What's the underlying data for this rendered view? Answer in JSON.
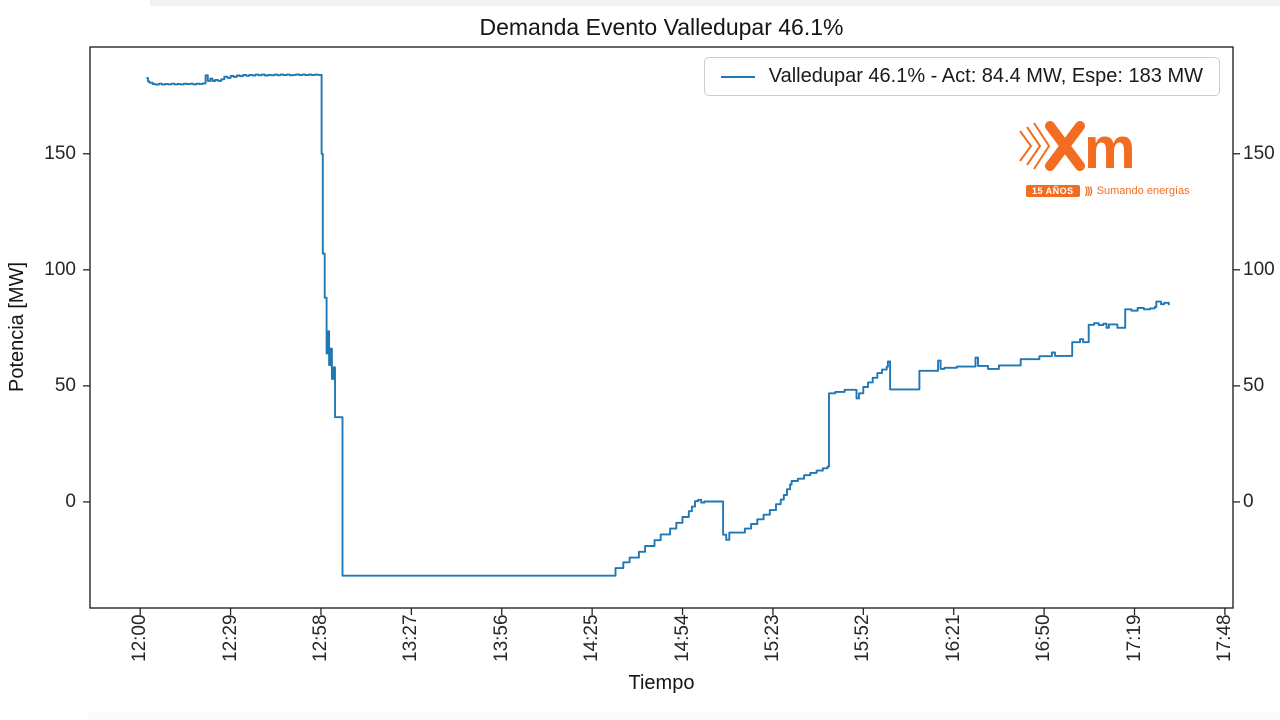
{
  "page": {
    "background": "#ffffff"
  },
  "chart_data": {
    "type": "line",
    "render": "step-after",
    "title": "Demanda Evento Valledupar 46.1%",
    "xlabel": "Tiempo",
    "ylabel": "Potencia [MW]",
    "line_color": "#1f77b4",
    "frame_color": "#262626",
    "legend": {
      "label": "Valledupar 46.1% - Act: 84.4 MW, Espe: 183 MW",
      "position": "upper right",
      "line_color": "#1f77b4"
    },
    "x_tick_labels": [
      "12:00",
      "12:29",
      "12:58",
      "13:27",
      "13:56",
      "14:25",
      "14:54",
      "15:23",
      "15:52",
      "16:21",
      "16:50",
      "17:19",
      "17:48"
    ],
    "x_tick_minutes": [
      720,
      749,
      778,
      807,
      836,
      865,
      894,
      923,
      952,
      981,
      1010,
      1039,
      1068
    ],
    "y_ticks": [
      0,
      50,
      100,
      150
    ],
    "xlim_minutes": [
      703.9,
      1070.6
    ],
    "ylim": [
      -45.7,
      196.0
    ],
    "grid": false,
    "points": [
      [
        722,
        182.6
      ],
      [
        722.5,
        181.2
      ],
      [
        723,
        180.6
      ],
      [
        724,
        180.0
      ],
      [
        725,
        179.8
      ],
      [
        726,
        180.2
      ],
      [
        727,
        179.8
      ],
      [
        728,
        180.1
      ],
      [
        729,
        179.9
      ],
      [
        730,
        180.2
      ],
      [
        731,
        179.9
      ],
      [
        732,
        180.1
      ],
      [
        733,
        179.9
      ],
      [
        734,
        180.2
      ],
      [
        735,
        180.0
      ],
      [
        736,
        180.2
      ],
      [
        737,
        179.9
      ],
      [
        738,
        180.2
      ],
      [
        739,
        180.0
      ],
      [
        740,
        180.3
      ],
      [
        741,
        183.8
      ],
      [
        741.7,
        181.4
      ],
      [
        742.5,
        182.4
      ],
      [
        743.2,
        181.3
      ],
      [
        744,
        181.8
      ],
      [
        745,
        181.4
      ],
      [
        746,
        182.1
      ],
      [
        747,
        183.2
      ],
      [
        748,
        182.7
      ],
      [
        749,
        183.5
      ],
      [
        750,
        183.1
      ],
      [
        751,
        183.7
      ],
      [
        752,
        183.4
      ],
      [
        753,
        184.0
      ],
      [
        754,
        183.6
      ],
      [
        755,
        184.0
      ],
      [
        756,
        183.7
      ],
      [
        757,
        184.1
      ],
      [
        758,
        183.8
      ],
      [
        759,
        184.1
      ],
      [
        760,
        183.7
      ],
      [
        761,
        184.0
      ],
      [
        762,
        183.8
      ],
      [
        763,
        184.1
      ],
      [
        764,
        183.8
      ],
      [
        765,
        184.1
      ],
      [
        766,
        183.9
      ],
      [
        767,
        184.1
      ],
      [
        768,
        183.8
      ],
      [
        769,
        184.0
      ],
      [
        770,
        184.2
      ],
      [
        771,
        183.9
      ],
      [
        772,
        184.1
      ],
      [
        773,
        183.9
      ],
      [
        774,
        184.1
      ],
      [
        775,
        183.9
      ],
      [
        776,
        184.1
      ],
      [
        777,
        184.0
      ],
      [
        778,
        184.0
      ],
      [
        778.2,
        150
      ],
      [
        778.6,
        107
      ],
      [
        779.2,
        88
      ],
      [
        779.8,
        64
      ],
      [
        780.2,
        73.5
      ],
      [
        780.6,
        59
      ],
      [
        781,
        66
      ],
      [
        781.5,
        53
      ],
      [
        782,
        58
      ],
      [
        782.5,
        36.5
      ],
      [
        784.6,
        36.5
      ],
      [
        784.9,
        -31.8
      ],
      [
        872,
        -31.8
      ],
      [
        872.5,
        -28.5
      ],
      [
        875,
        -26
      ],
      [
        877,
        -24
      ],
      [
        880,
        -21.5
      ],
      [
        882,
        -19
      ],
      [
        885,
        -16.5
      ],
      [
        887,
        -14
      ],
      [
        890,
        -11.5
      ],
      [
        892,
        -9
      ],
      [
        894,
        -6.5
      ],
      [
        896,
        -4
      ],
      [
        897,
        -2
      ],
      [
        898,
        0.3
      ],
      [
        899,
        0.9
      ],
      [
        900,
        -0.3
      ],
      [
        901,
        0.2
      ],
      [
        906,
        0.2
      ],
      [
        907,
        -14.1
      ],
      [
        908,
        -16.3
      ],
      [
        909,
        -13.2
      ],
      [
        913,
        -13.2
      ],
      [
        914,
        -11.5
      ],
      [
        916,
        -9.5
      ],
      [
        918,
        -7.5
      ],
      [
        920,
        -5.5
      ],
      [
        922,
        -3.5
      ],
      [
        924,
        -1
      ],
      [
        925.5,
        1
      ],
      [
        926.5,
        3
      ],
      [
        927.5,
        5.5
      ],
      [
        928.5,
        7.5
      ],
      [
        929,
        9
      ],
      [
        931,
        10
      ],
      [
        933,
        11.5
      ],
      [
        935,
        12.5
      ],
      [
        937,
        13.5
      ],
      [
        939,
        14.5
      ],
      [
        940.5,
        15.2
      ],
      [
        941,
        46.8
      ],
      [
        943,
        47.4
      ],
      [
        946,
        48.3
      ],
      [
        949,
        48.3
      ],
      [
        949.8,
        44.6
      ],
      [
        950.6,
        46.8
      ],
      [
        952,
        49.5
      ],
      [
        953.5,
        51.5
      ],
      [
        955,
        53.5
      ],
      [
        956.5,
        55.5
      ],
      [
        958,
        57
      ],
      [
        959.5,
        58.2
      ],
      [
        959.9,
        60.5
      ],
      [
        960.6,
        48.5
      ],
      [
        969.5,
        48.5
      ],
      [
        970,
        56.5
      ],
      [
        975.5,
        56.5
      ],
      [
        976,
        60.9
      ],
      [
        976.8,
        57.3
      ],
      [
        978,
        57.8
      ],
      [
        982,
        58.3
      ],
      [
        987.5,
        58.3
      ],
      [
        988,
        62.2
      ],
      [
        988.8,
        58.6
      ],
      [
        991.5,
        58.6
      ],
      [
        992,
        57.3
      ],
      [
        995,
        57.3
      ],
      [
        995.5,
        58.8
      ],
      [
        1002,
        58.8
      ],
      [
        1002.5,
        61.5
      ],
      [
        1008,
        61.5
      ],
      [
        1008.5,
        62.8
      ],
      [
        1012,
        62.8
      ],
      [
        1012.5,
        64.4
      ],
      [
        1013.5,
        62.9
      ],
      [
        1018.5,
        62.9
      ],
      [
        1019,
        68.8
      ],
      [
        1021,
        68.8
      ],
      [
        1021.5,
        70.1
      ],
      [
        1022.5,
        68.8
      ],
      [
        1023.8,
        68.8
      ],
      [
        1024.3,
        76.3
      ],
      [
        1026,
        77
      ],
      [
        1027.5,
        76.2
      ],
      [
        1029,
        76.8
      ],
      [
        1030,
        75
      ],
      [
        1030.8,
        76.5
      ],
      [
        1033,
        76.5
      ],
      [
        1033.5,
        75
      ],
      [
        1035.5,
        75
      ],
      [
        1036,
        83
      ],
      [
        1038,
        82.4
      ],
      [
        1040,
        83.6
      ],
      [
        1042,
        83
      ],
      [
        1044,
        83.4
      ],
      [
        1045.5,
        84
      ],
      [
        1046,
        86.3
      ],
      [
        1047.5,
        85.2
      ],
      [
        1048.5,
        85.8
      ],
      [
        1050,
        84.8
      ]
    ]
  },
  "logo": {
    "m": "m",
    "badge": "15 AÑOS",
    "badge_chevrons": ")))",
    "tagline": "Sumando energías",
    "color": "#f26d21"
  }
}
